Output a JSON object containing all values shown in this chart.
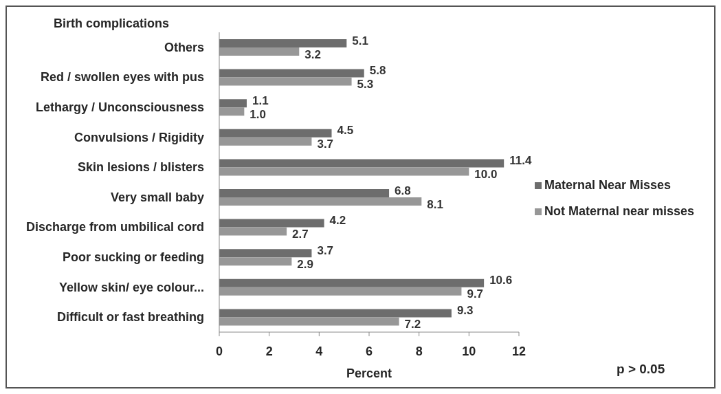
{
  "chart_data": {
    "type": "bar",
    "orientation": "horizontal",
    "ylabel": "Birth complications",
    "xlabel": "Percent",
    "categories": [
      "Others",
      "Red / swollen eyes with pus",
      "Lethargy / Unconsciousness",
      "Convulsions / Rigidity",
      "Skin lesions / blisters",
      "Very small baby",
      "Discharge from umbilical cord",
      "Poor sucking or feeding",
      "Yellow skin/ eye colour...",
      "Difficult or fast breathing"
    ],
    "series": [
      {
        "name": "Maternal Near Misses",
        "color": "#6d6d6d",
        "values": [
          5.1,
          5.8,
          1.1,
          4.5,
          11.4,
          6.8,
          4.2,
          3.7,
          10.6,
          9.3
        ],
        "value_labels": [
          "5.1",
          "5.8",
          "1.1",
          "4.5",
          "11.4",
          "6.8",
          "4.2",
          "3.7",
          "10.6",
          "9.3"
        ]
      },
      {
        "name": "Not Maternal near misses",
        "color": "#979797",
        "values": [
          3.2,
          5.3,
          1.0,
          3.7,
          10.0,
          8.1,
          2.7,
          2.9,
          9.7,
          7.2
        ],
        "value_labels": [
          "3.2",
          "5.3",
          "1.0",
          "3.7",
          "10.0",
          "8.1",
          "2.7",
          "2.9",
          "9.7",
          "7.2"
        ]
      }
    ],
    "xlim": [
      0,
      12
    ],
    "xticks": [
      0,
      2,
      4,
      6,
      8,
      10,
      12
    ],
    "legend": "right",
    "annotations": [
      "p > 0.05"
    ]
  }
}
